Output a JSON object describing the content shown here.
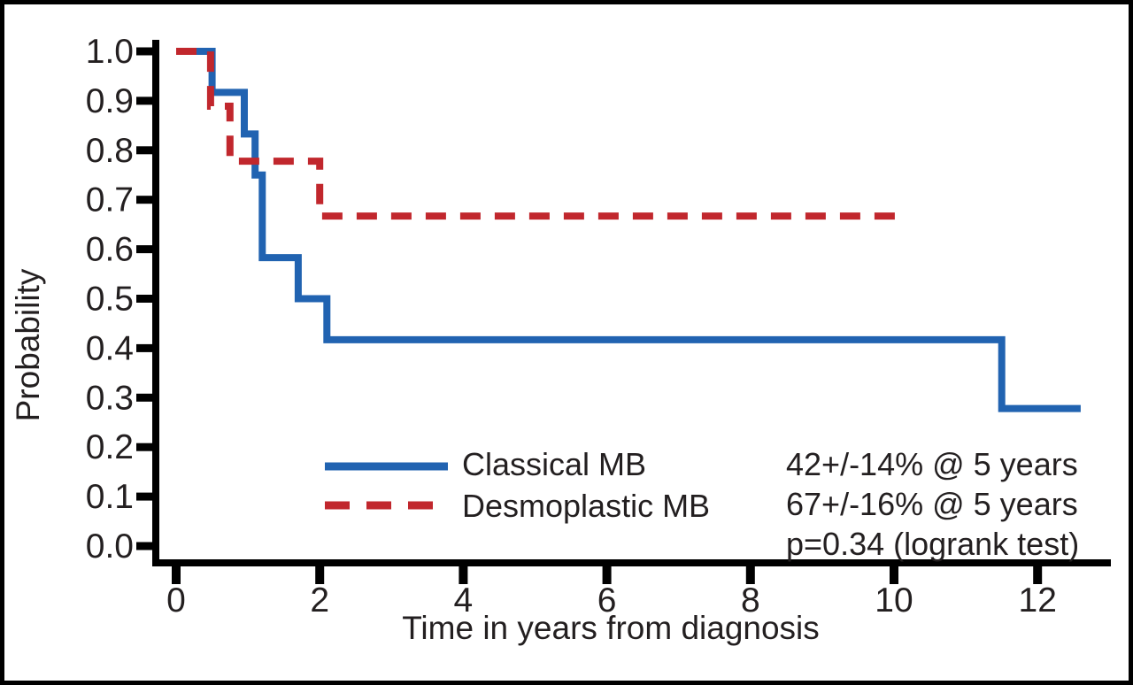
{
  "figure": {
    "background": "#ffffff",
    "border_color": "#000000",
    "text_color": "#231f20"
  },
  "chart_data": {
    "type": "line",
    "subtype": "kaplan-meier-step",
    "title": "",
    "xlabel": "Time in years from diagnosis",
    "ylabel": "Probability",
    "xlim": [
      0,
      13
    ],
    "ylim": [
      0.0,
      1.0
    ],
    "grid": false,
    "legend_position": "inside-bottom-center-left",
    "x_ticks": [
      {
        "v": 0,
        "label": "0"
      },
      {
        "v": 2,
        "label": "2"
      },
      {
        "v": 4,
        "label": "4"
      },
      {
        "v": 6,
        "label": "6"
      },
      {
        "v": 8,
        "label": "8"
      },
      {
        "v": 10,
        "label": "10"
      },
      {
        "v": 12,
        "label": "12"
      }
    ],
    "y_ticks": [
      {
        "v": 0.0,
        "label": "0.0"
      },
      {
        "v": 0.1,
        "label": "0.1"
      },
      {
        "v": 0.2,
        "label": "0.2"
      },
      {
        "v": 0.3,
        "label": "0.3"
      },
      {
        "v": 0.4,
        "label": "0.4"
      },
      {
        "v": 0.5,
        "label": "0.5"
      },
      {
        "v": 0.6,
        "label": "0.6"
      },
      {
        "v": 0.7,
        "label": "0.7"
      },
      {
        "v": 0.8,
        "label": "0.8"
      },
      {
        "v": 0.9,
        "label": "0.9"
      },
      {
        "v": 1.0,
        "label": "1.0"
      }
    ],
    "series": [
      {
        "name": "Classical MB",
        "color": "#2163b1",
        "style": "solid",
        "points": [
          [
            0,
            1.0
          ],
          [
            0.5,
            1.0
          ],
          [
            0.5,
            0.917
          ],
          [
            0.95,
            0.917
          ],
          [
            0.95,
            0.833
          ],
          [
            1.1,
            0.833
          ],
          [
            1.1,
            0.75
          ],
          [
            1.2,
            0.75
          ],
          [
            1.2,
            0.583
          ],
          [
            1.7,
            0.583
          ],
          [
            1.7,
            0.5
          ],
          [
            2.1,
            0.5
          ],
          [
            2.1,
            0.417
          ],
          [
            11.5,
            0.417
          ],
          [
            11.5,
            0.278
          ],
          [
            12.6,
            0.278
          ]
        ]
      },
      {
        "name": "Desmoplastic MB",
        "color": "#c1272d",
        "style": "dashed",
        "points": [
          [
            0,
            1.0
          ],
          [
            0.48,
            1.0
          ],
          [
            0.48,
            0.889
          ],
          [
            0.75,
            0.889
          ],
          [
            0.75,
            0.778
          ],
          [
            2.0,
            0.778
          ],
          [
            2.0,
            0.667
          ],
          [
            10.2,
            0.667
          ]
        ]
      }
    ],
    "annotations": [
      "42+/-14% @ 5 years",
      "67+/-16% @ 5 years",
      "p=0.34 (logrank test)"
    ]
  }
}
